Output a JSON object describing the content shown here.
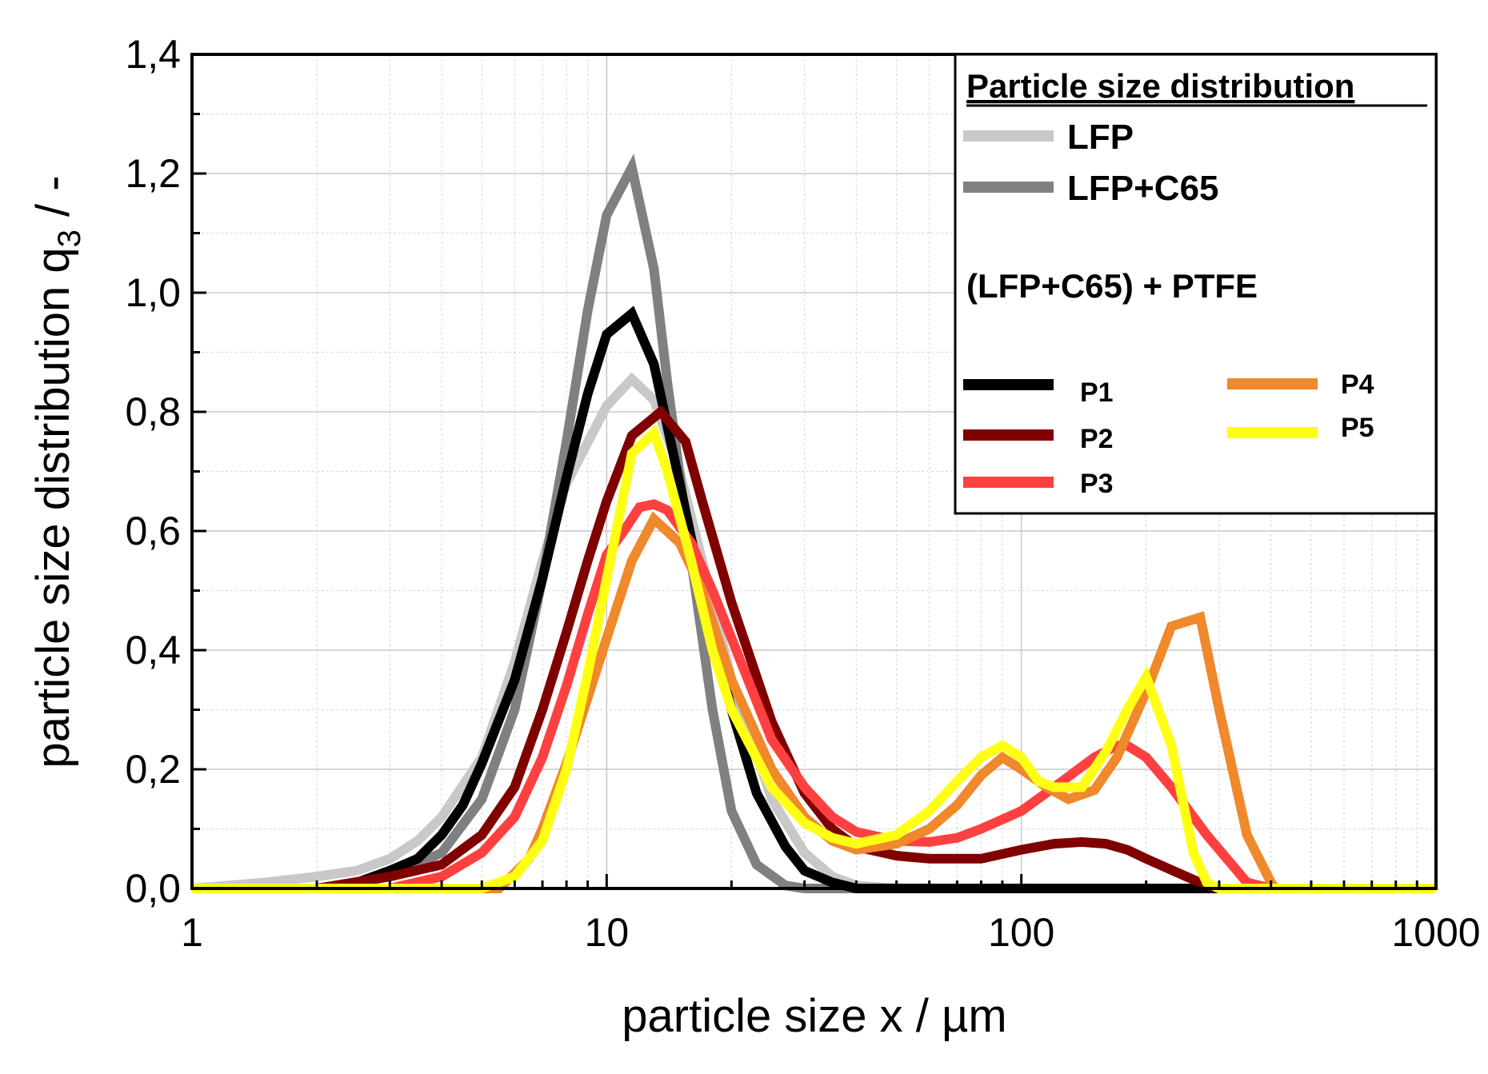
{
  "chart_data": {
    "type": "line",
    "title": "",
    "xlabel": "particle size x / µm",
    "ylabel_main": "particle size distribution q",
    "ylabel_sub": "3",
    "ylabel_tail": " / -",
    "xscale": "log",
    "xlim": [
      1,
      1000
    ],
    "ylim": [
      0,
      1.4
    ],
    "xticks": [
      1,
      10,
      100,
      1000
    ],
    "xtick_labels": [
      "1",
      "10",
      "100",
      "1000"
    ],
    "yticks": [
      0,
      0.2,
      0.4,
      0.6,
      0.8,
      1.0,
      1.2,
      1.4
    ],
    "ytick_labels": [
      "0,0",
      "0,2",
      "0,4",
      "0,6",
      "0,8",
      "1,0",
      "1,2",
      "1,4"
    ],
    "grid": true,
    "legend": {
      "placement": "top-right",
      "title": "Particle size distribution",
      "group_label": "(LFP+C65) + PTFE"
    },
    "series": [
      {
        "name": "LFP",
        "color": "#c8c8c8",
        "x": [
          1,
          1.5,
          2,
          2.5,
          3,
          3.5,
          4,
          5,
          6,
          7,
          8,
          10,
          11.5,
          13,
          15,
          17,
          20,
          25,
          30,
          35,
          40,
          50,
          1000
        ],
        "y": [
          0,
          0.01,
          0.02,
          0.03,
          0.05,
          0.08,
          0.12,
          0.22,
          0.38,
          0.55,
          0.68,
          0.81,
          0.855,
          0.82,
          0.7,
          0.55,
          0.35,
          0.15,
          0.06,
          0.02,
          0.005,
          0,
          0
        ]
      },
      {
        "name": "LFP+C65",
        "color": "#808080",
        "x": [
          1,
          2,
          2.5,
          3,
          4,
          5,
          6,
          7,
          8,
          9,
          10,
          11.5,
          13,
          14,
          16,
          18,
          20,
          23,
          27,
          30,
          1000
        ],
        "y": [
          0,
          0,
          0.01,
          0.02,
          0.06,
          0.15,
          0.3,
          0.52,
          0.75,
          0.97,
          1.13,
          1.21,
          1.04,
          0.85,
          0.55,
          0.3,
          0.13,
          0.04,
          0.005,
          0,
          0
        ]
      },
      {
        "name": "P1",
        "color": "#000000",
        "x": [
          1,
          2,
          2.5,
          3,
          3.5,
          4,
          4.5,
          5,
          6,
          7,
          8,
          9,
          10,
          11.5,
          13,
          15,
          17,
          20,
          23,
          27,
          30,
          35,
          40,
          1000
        ],
        "y": [
          0,
          0,
          0.01,
          0.03,
          0.05,
          0.09,
          0.14,
          0.21,
          0.35,
          0.52,
          0.69,
          0.83,
          0.93,
          0.965,
          0.88,
          0.68,
          0.5,
          0.3,
          0.16,
          0.07,
          0.03,
          0.01,
          0,
          0
        ]
      },
      {
        "name": "P2",
        "color": "#800000",
        "x": [
          1,
          2,
          3,
          4,
          5,
          6,
          7,
          8,
          9,
          10,
          11.5,
          13.5,
          15.5,
          17,
          20,
          25,
          30,
          35,
          40,
          50,
          60,
          80,
          100,
          120,
          140,
          160,
          180,
          200,
          250,
          280,
          300,
          1000
        ],
        "y": [
          0,
          0,
          0.02,
          0.04,
          0.09,
          0.17,
          0.3,
          0.43,
          0.55,
          0.65,
          0.76,
          0.8,
          0.75,
          0.65,
          0.48,
          0.28,
          0.16,
          0.1,
          0.07,
          0.055,
          0.05,
          0.05,
          0.065,
          0.075,
          0.078,
          0.075,
          0.065,
          0.05,
          0.02,
          0.005,
          0,
          0
        ]
      },
      {
        "name": "P3",
        "color": "#ff4040",
        "x": [
          1,
          3,
          4,
          5,
          6,
          7,
          8,
          9,
          10,
          11,
          12,
          13,
          14,
          16,
          18,
          20,
          25,
          30,
          35,
          40,
          50,
          60,
          70,
          80,
          100,
          120,
          150,
          170,
          180,
          200,
          230,
          280,
          350,
          400,
          1000
        ],
        "y": [
          0,
          0,
          0.02,
          0.06,
          0.12,
          0.22,
          0.34,
          0.46,
          0.56,
          0.6,
          0.64,
          0.645,
          0.635,
          0.58,
          0.5,
          0.42,
          0.25,
          0.17,
          0.12,
          0.095,
          0.08,
          0.078,
          0.085,
          0.1,
          0.13,
          0.17,
          0.22,
          0.24,
          0.24,
          0.22,
          0.17,
          0.09,
          0.01,
          0,
          0
        ]
      },
      {
        "name": "P4",
        "color": "#f0882c",
        "x": [
          1,
          5.5,
          6.5,
          7,
          8,
          9,
          10,
          11.5,
          13,
          15,
          17,
          20,
          25,
          30,
          35,
          40,
          50,
          60,
          70,
          80,
          90,
          100,
          115,
          130,
          150,
          170,
          200,
          230,
          270,
          300,
          350,
          400,
          410,
          1000
        ],
        "y": [
          0,
          0,
          0.05,
          0.1,
          0.21,
          0.32,
          0.42,
          0.55,
          0.62,
          0.58,
          0.5,
          0.35,
          0.2,
          0.12,
          0.08,
          0.065,
          0.075,
          0.1,
          0.14,
          0.19,
          0.22,
          0.2,
          0.17,
          0.15,
          0.165,
          0.22,
          0.33,
          0.44,
          0.455,
          0.3,
          0.09,
          0.01,
          0,
          0
        ]
      },
      {
        "name": "P5",
        "color": "#ffff14",
        "x": [
          1,
          5,
          6,
          7,
          8,
          9,
          10,
          11.5,
          13,
          14,
          16,
          18,
          20,
          25,
          30,
          35,
          40,
          50,
          60,
          70,
          80,
          90,
          100,
          110,
          120,
          140,
          160,
          180,
          200,
          230,
          260,
          280,
          300,
          1000
        ],
        "y": [
          0,
          0,
          0.02,
          0.08,
          0.2,
          0.36,
          0.52,
          0.73,
          0.765,
          0.7,
          0.55,
          0.4,
          0.3,
          0.17,
          0.11,
          0.085,
          0.075,
          0.09,
          0.13,
          0.18,
          0.22,
          0.24,
          0.22,
          0.18,
          0.17,
          0.17,
          0.23,
          0.3,
          0.355,
          0.24,
          0.06,
          0.01,
          0,
          0
        ]
      }
    ]
  }
}
